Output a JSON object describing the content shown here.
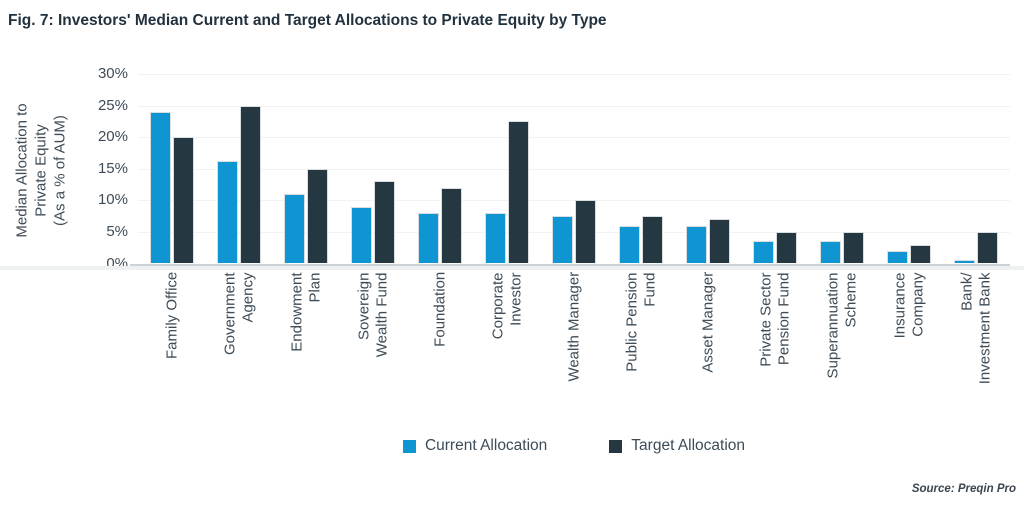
{
  "chart_data": {
    "type": "bar",
    "title": "Fig. 7: Investors' Median Current and Target Allocations to Private Equity by Type",
    "ylabel": "Median Allocation to Private Equity (As a % of AUM)",
    "ylabel_lines": [
      "Median Allocation to",
      "Private Equity",
      "(As a % of AUM)"
    ],
    "ylim": [
      0,
      30
    ],
    "ytick_step": 5,
    "ytick_suffix": "%",
    "grid": true,
    "legend_position": "bottom-center",
    "source": "Source: Preqin Pro",
    "categories": [
      {
        "label": "Family Office",
        "lines": [
          "Family Office"
        ]
      },
      {
        "label": "Government Agency",
        "lines": [
          "Government",
          "Agency"
        ]
      },
      {
        "label": "Endowment Plan",
        "lines": [
          "Endowment",
          "Plan"
        ]
      },
      {
        "label": "Sovereign Wealth Fund",
        "lines": [
          "Sovereign",
          "Wealth Fund"
        ]
      },
      {
        "label": "Foundation",
        "lines": [
          "Foundation"
        ]
      },
      {
        "label": "Corporate Investor",
        "lines": [
          "Corporate",
          "Investor"
        ]
      },
      {
        "label": "Wealth Manager",
        "lines": [
          "Wealth Manager"
        ]
      },
      {
        "label": "Public Pension Fund",
        "lines": [
          "Public Pension",
          "Fund"
        ]
      },
      {
        "label": "Asset Manager",
        "lines": [
          "Asset Manager"
        ]
      },
      {
        "label": "Private Sector Pension Fund",
        "lines": [
          "Private Sector",
          "Pension Fund"
        ]
      },
      {
        "label": "Superannuation Scheme",
        "lines": [
          "Superannuation",
          "Scheme"
        ]
      },
      {
        "label": "Insurance Company",
        "lines": [
          "Insurance",
          "Company"
        ]
      },
      {
        "label": "Bank/Investment Bank",
        "lines": [
          "Bank/",
          "Investment Bank"
        ]
      }
    ],
    "series": [
      {
        "name": "Current Allocation",
        "color": "#1095d3",
        "values": [
          24,
          16.3,
          11,
          9,
          8,
          8,
          7.5,
          6,
          6,
          3.5,
          3.5,
          2,
          0.5
        ]
      },
      {
        "name": "Target Allocation",
        "color": "#253740",
        "values": [
          20,
          25,
          15,
          13,
          12,
          22.5,
          10,
          7.5,
          7,
          5,
          5,
          3,
          5
        ]
      }
    ]
  }
}
